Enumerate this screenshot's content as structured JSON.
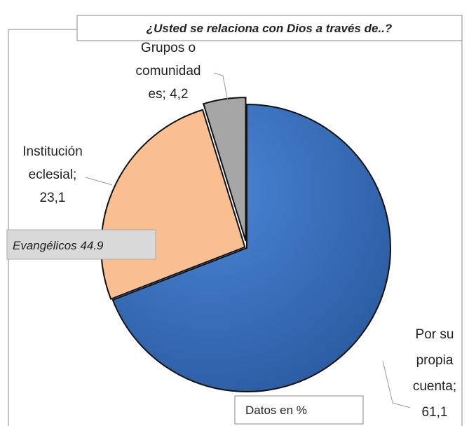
{
  "chart_data": {
    "type": "pie",
    "title": "¿Usted se relaciona con Dios  a través de..?",
    "categories": [
      "Por su propia cuenta",
      "Institución eclesial",
      "Grupos o comunidades"
    ],
    "values": [
      61.1,
      23.1,
      4.2
    ],
    "value_labels": [
      [
        "Por su",
        "propia",
        "cuenta;",
        "61,1"
      ],
      [
        "Institución",
        "eclesial;",
        "23,1"
      ],
      [
        "Grupos o",
        "comunidad",
        "es; 4,2"
      ]
    ],
    "colors": [
      "#3a72c2",
      "#f9bf91",
      "#a6a6a6"
    ],
    "annotations": [
      "Evangélicos 44.9",
      "Datos en  %"
    ]
  }
}
